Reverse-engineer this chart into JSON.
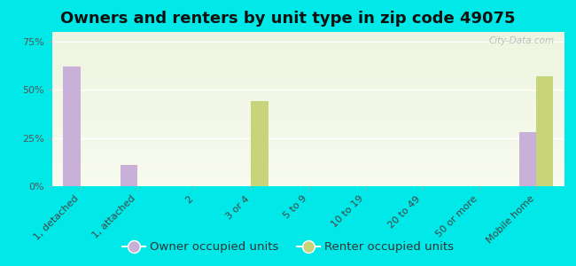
{
  "title": "Owners and renters by unit type in zip code 49075",
  "categories": [
    "1, detached",
    "1, attached",
    "2",
    "3 or 4",
    "5 to 9",
    "10 to 19",
    "20 to 49",
    "50 or more",
    "Mobile home"
  ],
  "owner_values": [
    62,
    11,
    0,
    0,
    0,
    0,
    0,
    0,
    28
  ],
  "renter_values": [
    0,
    0,
    0,
    44,
    0,
    0,
    0,
    0,
    57
  ],
  "owner_color": "#c9b0d8",
  "renter_color": "#c8d47a",
  "background_outer": "#00e8e8",
  "background_plot_top": "#edf4e0",
  "background_plot_bottom": "#f7faee",
  "yticks": [
    0,
    25,
    50,
    75
  ],
  "ylim": [
    0,
    80
  ],
  "bar_width": 0.6,
  "title_fontsize": 13,
  "legend_fontsize": 9.5,
  "tick_fontsize": 8,
  "watermark": "City-Data.com"
}
